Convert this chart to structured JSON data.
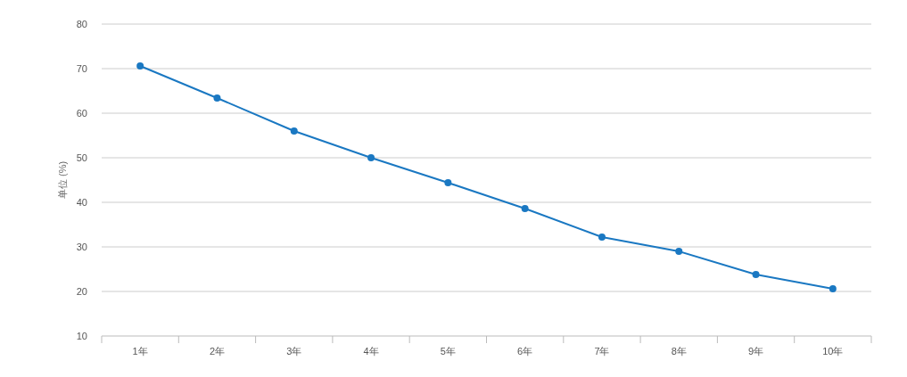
{
  "chart_data": {
    "type": "line",
    "ylabel": "单位 (%)",
    "categories": [
      "1年",
      "2年",
      "3年",
      "4年",
      "5年",
      "6年",
      "7年",
      "8年",
      "9年",
      "10年"
    ],
    "series": [
      {
        "color": "#1a78c2",
        "values": [
          70.6,
          63.4,
          56,
          50,
          44.4,
          38.6,
          32.2,
          29,
          23.8,
          20.6
        ]
      }
    ],
    "ylim": [
      10,
      80
    ],
    "yticks": [
      10,
      20,
      30,
      40,
      50,
      60,
      70,
      80
    ],
    "grid": "y",
    "marker": "circle"
  }
}
